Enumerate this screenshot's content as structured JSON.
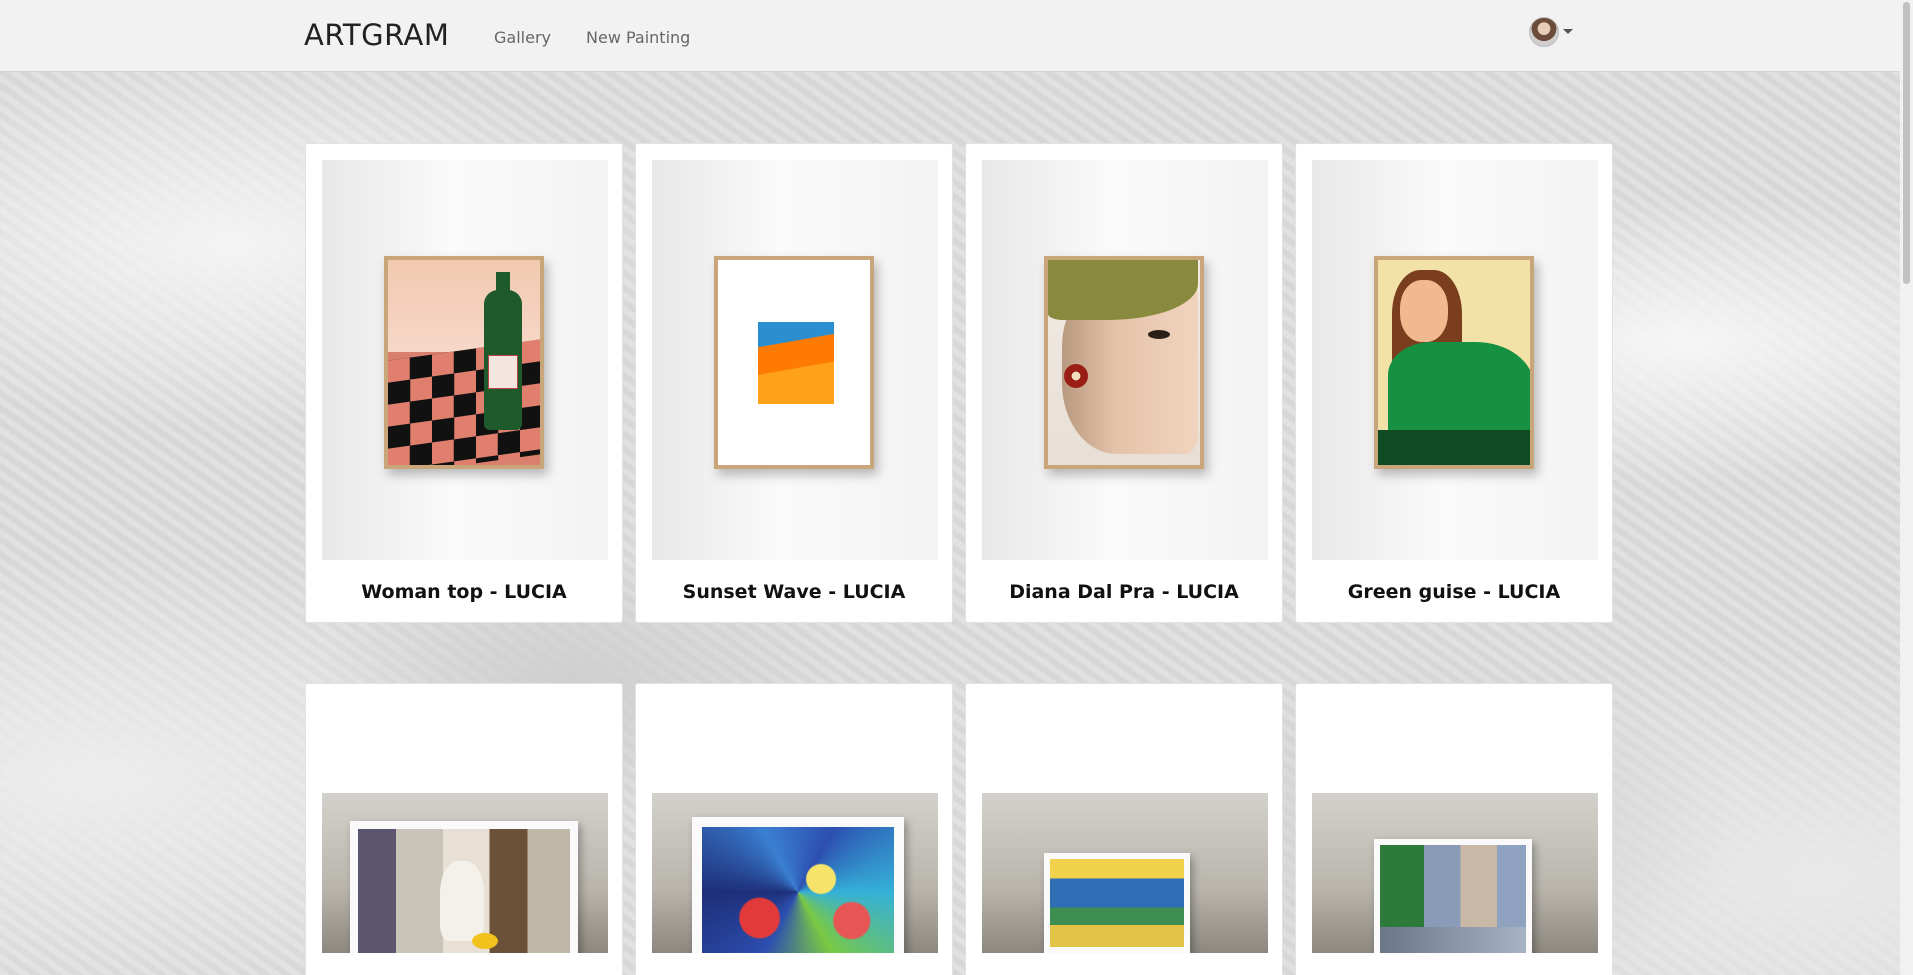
{
  "navbar": {
    "brand": "ARTGRAM",
    "links": [
      {
        "label": "Gallery"
      },
      {
        "label": "New Painting"
      }
    ],
    "avatar_icon": "user-avatar-icon",
    "dropdown_icon": "caret-down-icon"
  },
  "gallery": {
    "paintings": [
      {
        "title": "Woman top - LUCIA",
        "thumbnail": "framed poster of a wine bottle on a checkered table"
      },
      {
        "title": "Sunset Wave - LUCIA",
        "thumbnail": "framed poster of an orange and blue abstract block"
      },
      {
        "title": "Diana Dal Pra - LUCIA",
        "thumbnail": "framed poster of a woman's face"
      },
      {
        "title": "Green guise - LUCIA",
        "thumbnail": "framed poster of a woman in a green sweater"
      },
      {
        "title": "",
        "thumbnail": "cubist still life canvas"
      },
      {
        "title": "",
        "thumbnail": "colorful abstract fruit canvas"
      },
      {
        "title": "",
        "thumbnail": "city landscape canvas"
      },
      {
        "title": "",
        "thumbnail": "street scene canvas"
      }
    ]
  }
}
